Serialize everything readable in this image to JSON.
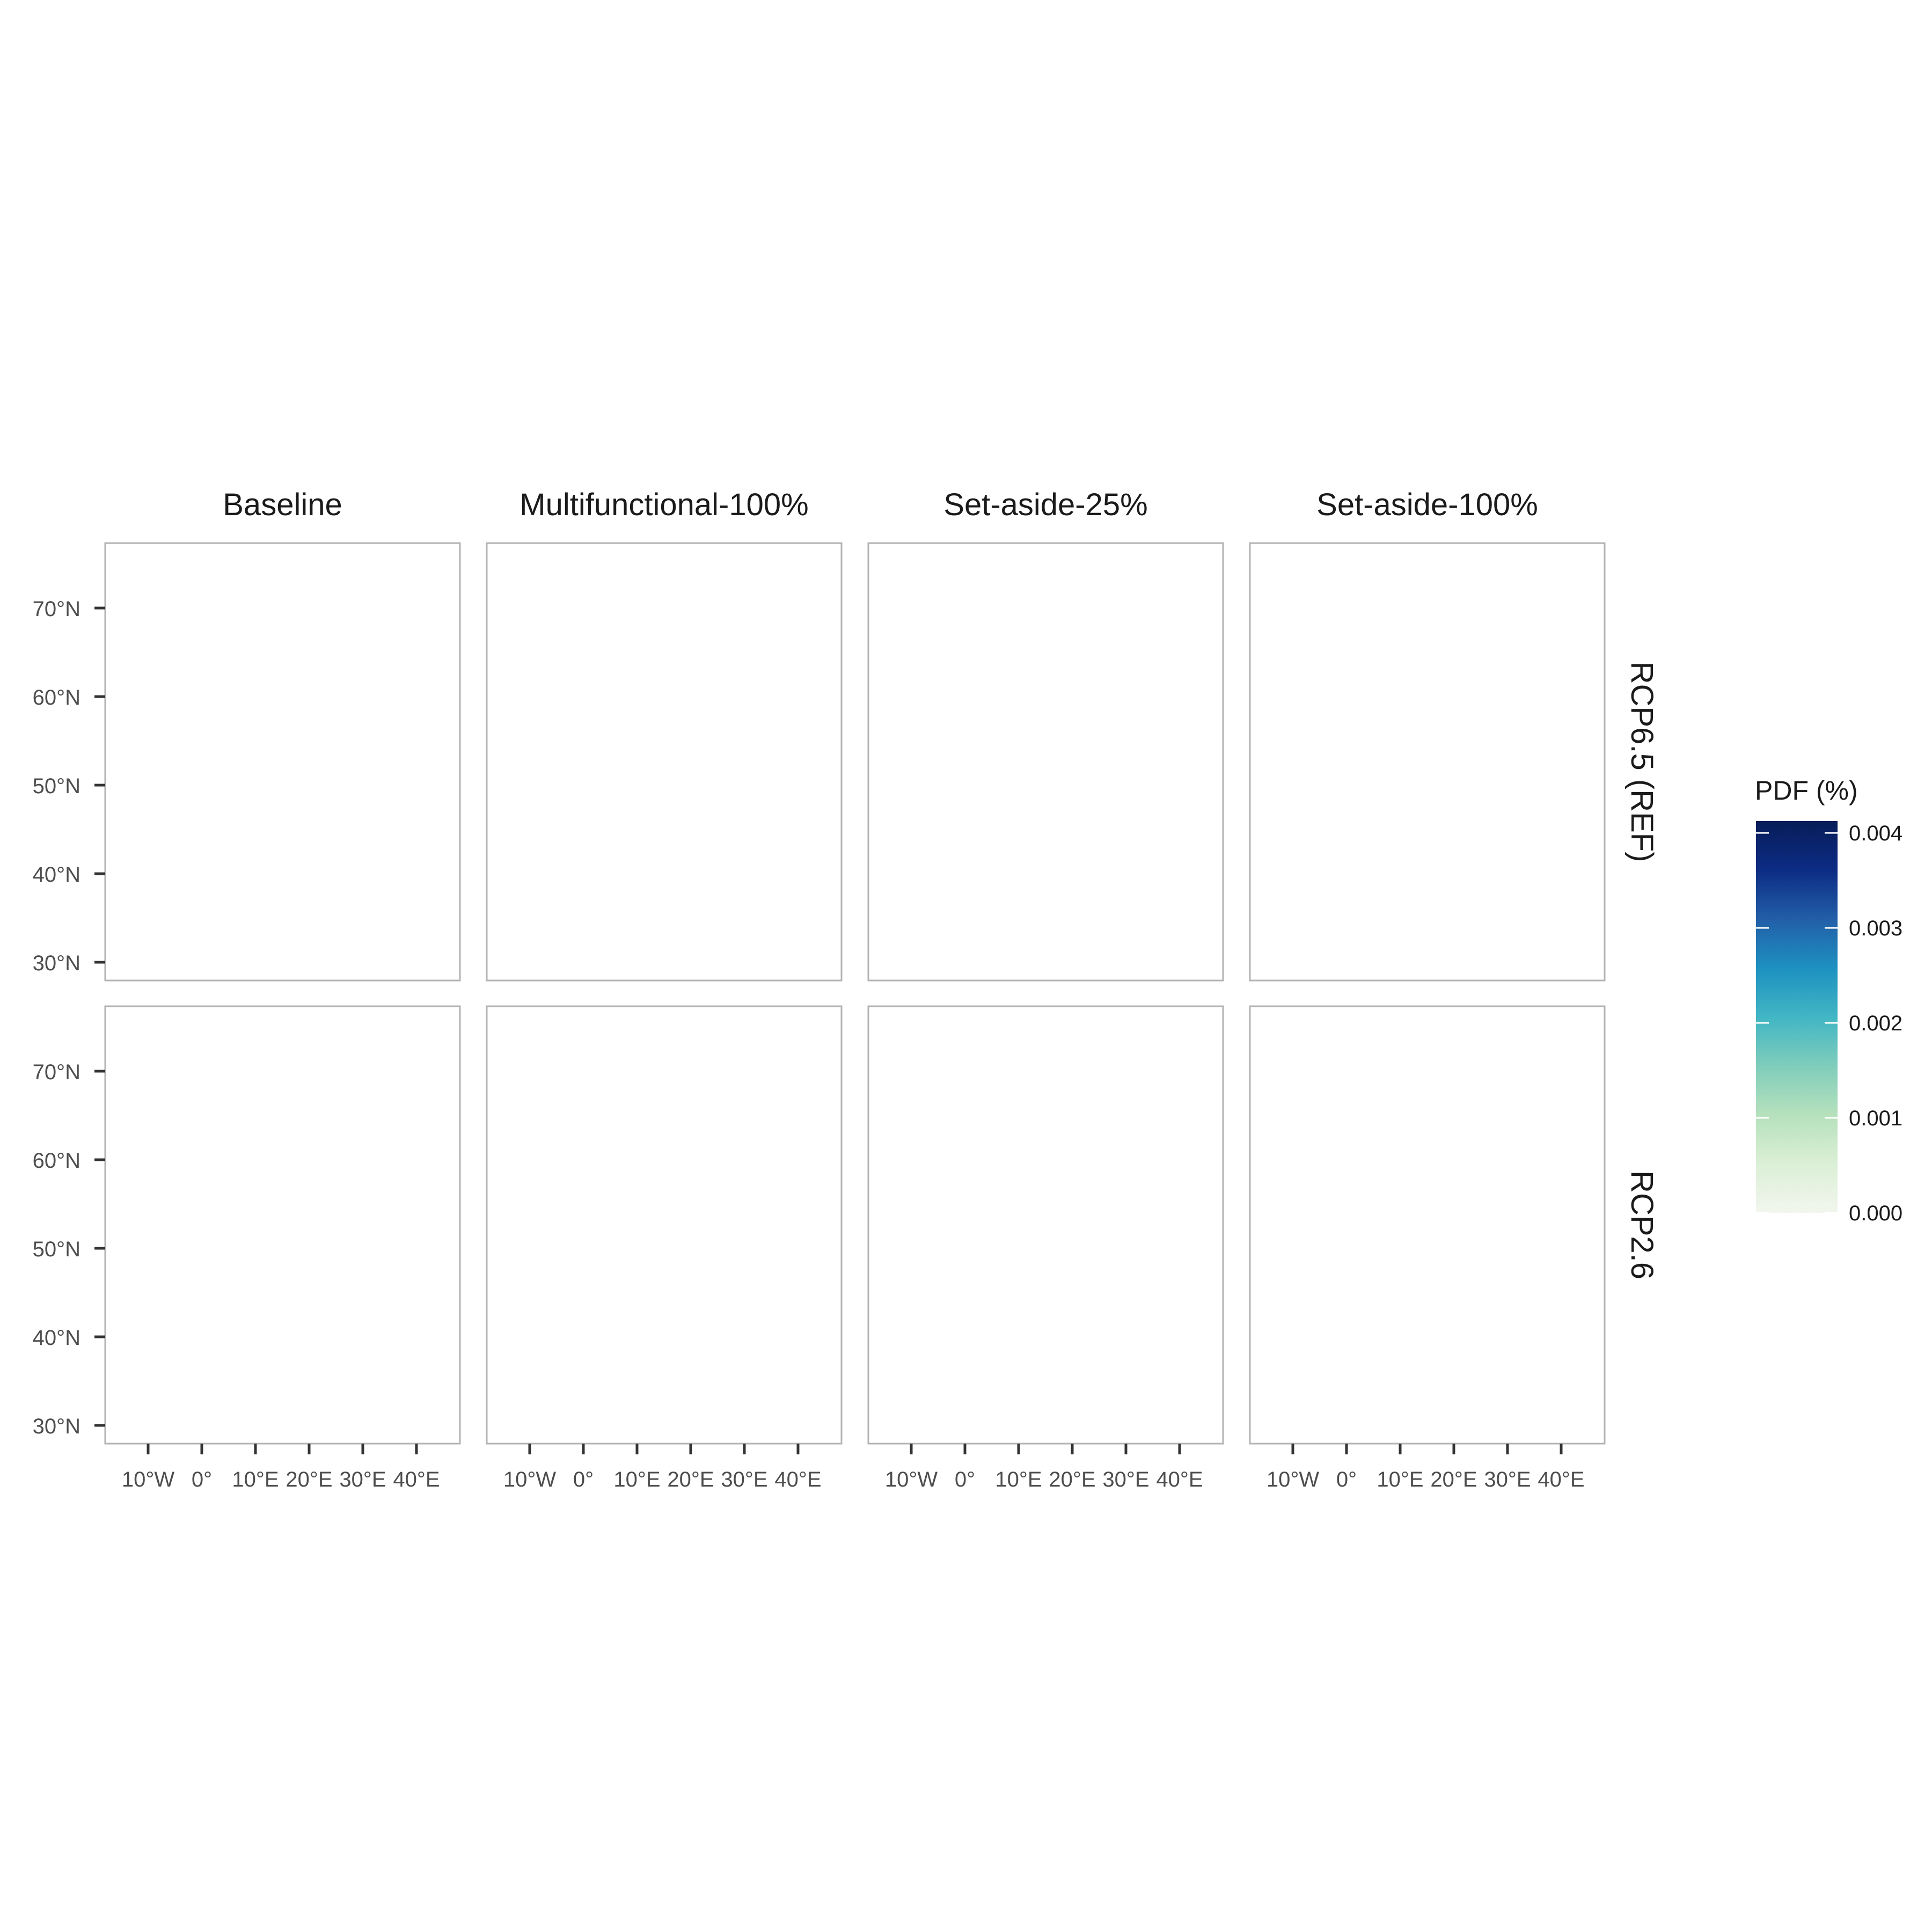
{
  "columns": [
    "Baseline",
    "Multifunctional-100%",
    "Set-aside-25%",
    "Set-aside-100%"
  ],
  "rows": [
    "RCP6.5 (REF)",
    "RCP2.6"
  ],
  "x_ticks": [
    "10°W",
    "0°",
    "10°E",
    "20°E",
    "30°E",
    "40°E"
  ],
  "y_ticks": [
    "70°N",
    "60°N",
    "50°N",
    "40°N",
    "30°N"
  ],
  "legend": {
    "title": "PDF (%)",
    "ticks": [
      "0.004",
      "0.003",
      "0.002",
      "0.001",
      "0.000"
    ],
    "colors": [
      "#f2f6ee",
      "#dbefd6",
      "#b6e1bc",
      "#7fcdbb",
      "#41b6c4",
      "#1d91c0",
      "#225ea8",
      "#0c2c84",
      "#081d58"
    ]
  },
  "colors": {
    "background_land": "#eef3ea",
    "panel_border": "#b3b3b3",
    "axis_text": "#4d4d4d"
  },
  "panels": [
    {
      "column": "Baseline",
      "row": "RCP6.5 (REF)",
      "north": "#4ab2cc",
      "central": "#d3ecce",
      "france": "#8fd1c4",
      "iberia_north": "#0c2c84",
      "iberia": "#79c8c1",
      "med": "#a8dcc0"
    },
    {
      "column": "Multifunctional-100%",
      "row": "RCP6.5 (REF)",
      "north": "#6cc3cc",
      "central": "#d6edd1",
      "france": "#c8e7c7",
      "iberia_north": "#0e3a8c",
      "iberia": "#79c8c1",
      "med": "#c2e5c6"
    },
    {
      "column": "Set-aside-25%",
      "row": "RCP6.5 (REF)",
      "north": "#40aed0",
      "central": "#d4edcf",
      "france": "#bde3c3",
      "iberia_north": "#0c2c84",
      "iberia": "#5bbcc9",
      "med": "#a4dac0"
    },
    {
      "column": "Set-aside-100%",
      "row": "RCP6.5 (REF)",
      "north": "#8fd3c8",
      "central": "#e3f2de",
      "france": "#e3f2de",
      "iberia_north": "#0c2c84",
      "iberia": "#6cc3c9",
      "med": "#c6e7c8"
    },
    {
      "column": "Baseline",
      "row": "RCP2.6",
      "north": "#2f9fcc",
      "central": "#cfeacc",
      "france": "#4fb5cc",
      "iberia_north": "#081d58",
      "iberia": "#4db3cf",
      "med": "#98d6c2"
    },
    {
      "column": "Multifunctional-100%",
      "row": "RCP2.6",
      "north": "#54b8cd",
      "central": "#d1ebcd",
      "france": "#c5e6c7",
      "iberia_north": "#0c2c84",
      "iberia": "#3da9cc",
      "med": "#b8e1c4"
    },
    {
      "column": "Set-aside-25%",
      "row": "RCP2.6",
      "north": "#35a3cf",
      "central": "#cfeacc",
      "france": "#a6dbc0",
      "iberia_north": "#081d58",
      "iberia": "#3da9cc",
      "med": "#9ad7c2"
    },
    {
      "column": "Set-aside-100%",
      "row": "RCP2.6",
      "north": "#7fcdc4",
      "central": "#e2f1dc",
      "france": "#e2f1dc",
      "iberia_north": "#0c2c84",
      "iberia": "#3da9cc",
      "med": "#bde3c5"
    }
  ]
}
